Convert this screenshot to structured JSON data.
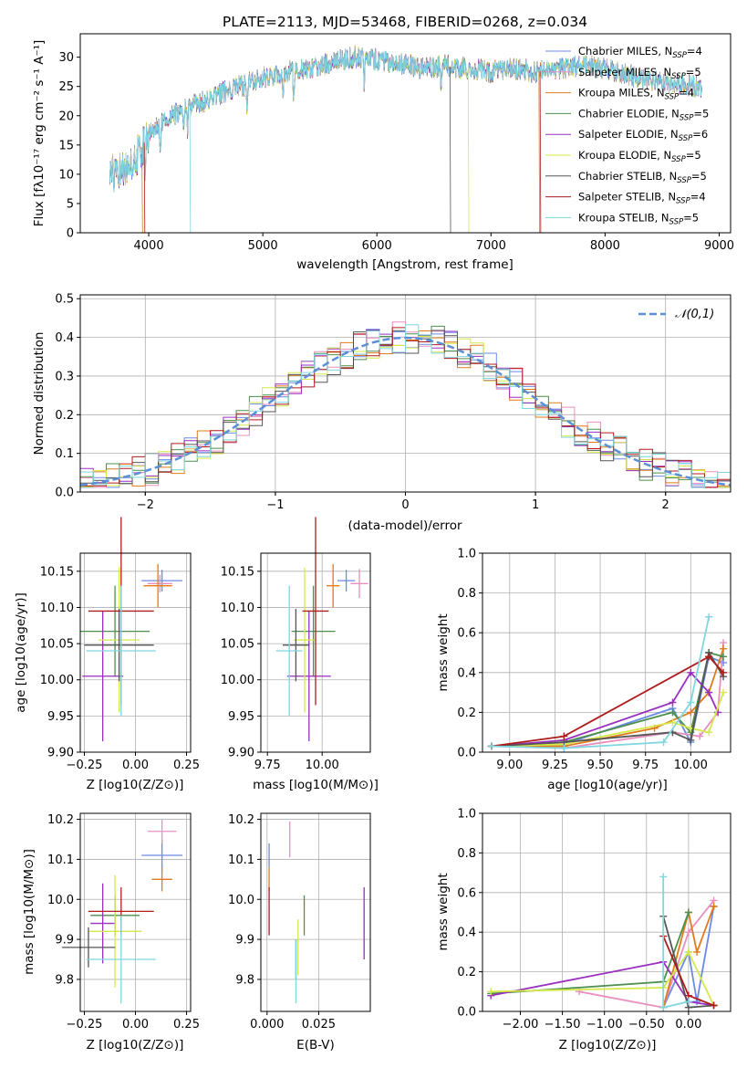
{
  "colors": {
    "Chabrier MILES": "#6b8ae6",
    "Salpeter MILES": "#e88fbf",
    "Kroupa MILES": "#e07b1a",
    "Chabrier ELODIE": "#4d8f4d",
    "Salpeter ELODIE": "#9a2fc0",
    "Kroupa ELODIE": "#d4e84a",
    "Chabrier STELIB": "#555555",
    "Salpeter STELIB": "#b01c1c",
    "Kroupa STELIB": "#7fd6e0"
  },
  "chart_data": [
    {
      "type": "line",
      "title": "PLATE=2113, MJD=53468, FIBERID=0268, z=0.034",
      "xlabel": "wavelength [Angstrom, rest frame]",
      "ylabel": "Flux [fλ10⁻¹⁷ erg cm⁻² s⁻¹ A⁻¹]",
      "xlim": [
        3400,
        9100
      ],
      "ylim": [
        0,
        34
      ],
      "xticks": [
        4000,
        5000,
        6000,
        7000,
        8000,
        9000
      ],
      "yticks": [
        0,
        5,
        10,
        15,
        20,
        25,
        30
      ],
      "legend_position": "right",
      "series": [
        {
          "name": "Chabrier MILES, N_SSP=4"
        },
        {
          "name": "Salpeter MILES, N_SSP=5"
        },
        {
          "name": "Kroupa MILES, N_SSP=4"
        },
        {
          "name": "Chabrier ELODIE, N_SSP=5"
        },
        {
          "name": "Salpeter ELODIE, N_SSP=6"
        },
        {
          "name": "Kroupa ELODIE, N_SSP=5"
        },
        {
          "name": "Chabrier STELIB, N_SSP=5"
        },
        {
          "name": "Salpeter STELIB, N_SSP=4"
        },
        {
          "name": "Kroupa STELIB, N_SSP=5"
        }
      ],
      "continuum": {
        "x": [
          3650,
          3750,
          3850,
          3950,
          4000,
          4100,
          4200,
          4300,
          4400,
          4500,
          4600,
          4800,
          5000,
          5200,
          5400,
          5600,
          5800,
          6000,
          6200,
          6400,
          6600,
          6800,
          7000,
          7200,
          7400,
          7600,
          7800,
          8000,
          8200,
          8400,
          8600,
          8850
        ],
        "y": [
          10,
          10.5,
          11.5,
          15,
          17,
          18.5,
          20,
          21,
          22,
          22.5,
          23.5,
          25,
          26.5,
          27.5,
          28,
          29,
          30,
          29.5,
          29,
          28,
          28.5,
          28,
          27.5,
          28,
          27.5,
          28,
          28.5,
          28,
          27,
          26,
          25.5,
          25
        ]
      },
      "absorption_lines": [
        3934,
        3968,
        4102,
        4304,
        4340,
        4861,
        5175,
        5270,
        5890,
        6563
      ]
    },
    {
      "type": "bar",
      "xlabel": "(data-model)/error",
      "ylabel": "Normed distribution",
      "xlim": [
        -2.5,
        2.5
      ],
      "ylim": [
        0,
        0.51
      ],
      "xticks": [
        -2,
        -1,
        0,
        1,
        2
      ],
      "yticks": [
        0.0,
        0.1,
        0.2,
        0.3,
        0.4,
        0.5
      ],
      "legend_position": "upper right",
      "reference_curve": {
        "name": "N(0,1)",
        "label": "𝒩(0,1)",
        "color": "#5b8fd6",
        "style": "dashed"
      },
      "bin_width": 0.1,
      "bins_start": -2.5
    },
    {
      "type": "scatter",
      "xlabel": "Z [log10(Z/Z⊙)]",
      "ylabel": "age  [log10(age/yr)]",
      "xlim": [
        -0.27,
        0.27
      ],
      "ylim": [
        9.9,
        10.175
      ],
      "xticks": [
        -0.25,
        0.0,
        0.25
      ],
      "yticks": [
        9.9,
        9.95,
        10.0,
        10.05,
        10.1,
        10.15
      ],
      "points": [
        {
          "model": "Chabrier MILES",
          "x": 0.13,
          "xerr": 0.1,
          "y": 10.137,
          "yerr": 0.015
        },
        {
          "model": "Salpeter MILES",
          "x": 0.12,
          "xerr": 0.06,
          "y": 10.133,
          "yerr": 0.012
        },
        {
          "model": "Kroupa MILES",
          "x": 0.11,
          "xerr": 0.07,
          "y": 10.13,
          "yerr": 0.03
        },
        {
          "model": "Chabrier ELODIE",
          "x": -0.1,
          "xerr": 0.17,
          "y": 10.067,
          "yerr": 0.063
        },
        {
          "model": "Salpeter ELODIE",
          "x": -0.16,
          "xerr": 0.1,
          "y": 10.005,
          "yerr": 0.09
        },
        {
          "model": "Kroupa ELODIE",
          "x": -0.08,
          "xerr": 0.1,
          "y": 10.055,
          "yerr": 0.1
        },
        {
          "model": "Chabrier STELIB",
          "x": -0.08,
          "xerr": 0.17,
          "y": 10.048,
          "yerr": 0.05
        },
        {
          "model": "Salpeter STELIB",
          "x": -0.07,
          "xerr": 0.16,
          "y": 10.095,
          "yerr": 0.13
        },
        {
          "model": "Kroupa STELIB",
          "x": -0.07,
          "xerr": 0.17,
          "y": 10.04,
          "yerr": 0.09
        }
      ]
    },
    {
      "type": "scatter",
      "xlabel": "mass [log10(M/M⊙)]",
      "ylabel": "",
      "xlim": [
        9.72,
        10.22
      ],
      "ylim": [
        9.9,
        10.175
      ],
      "xticks": [
        9.75,
        10.0
      ],
      "yticks": [
        9.9,
        9.95,
        10.0,
        10.05,
        10.1,
        10.15
      ],
      "points": [
        {
          "model": "Chabrier MILES",
          "x": 10.11,
          "xerr": 0.04,
          "y": 10.137,
          "yerr": 0.015
        },
        {
          "model": "Salpeter MILES",
          "x": 10.17,
          "xerr": 0.04,
          "y": 10.133,
          "yerr": 0.02
        },
        {
          "model": "Kroupa MILES",
          "x": 10.05,
          "xerr": 0.03,
          "y": 10.13,
          "yerr": 0.03
        },
        {
          "model": "Chabrier ELODIE",
          "x": 9.96,
          "xerr": 0.1,
          "y": 10.067,
          "yerr": 0.063
        },
        {
          "model": "Salpeter ELODIE",
          "x": 9.94,
          "xerr": 0.1,
          "y": 10.005,
          "yerr": 0.09
        },
        {
          "model": "Kroupa ELODIE",
          "x": 9.92,
          "xerr": 0.05,
          "y": 10.055,
          "yerr": 0.1
        },
        {
          "model": "Chabrier STELIB",
          "x": 9.88,
          "xerr": 0.06,
          "y": 10.048,
          "yerr": 0.05
        },
        {
          "model": "Salpeter STELIB",
          "x": 9.97,
          "xerr": 0.06,
          "y": 10.095,
          "yerr": 0.13
        },
        {
          "model": "Kroupa STELIB",
          "x": 9.85,
          "xerr": 0.06,
          "y": 10.04,
          "yerr": 0.09
        }
      ]
    },
    {
      "type": "line",
      "xlabel": "age  [log10(age/yr)]",
      "ylabel": "mass weight",
      "xlim": [
        8.85,
        10.22
      ],
      "ylim": [
        0,
        1
      ],
      "xticks": [
        9.0,
        9.25,
        9.5,
        9.75,
        10.0
      ],
      "yticks": [
        0.0,
        0.2,
        0.4,
        0.6,
        0.8,
        1.0
      ],
      "series": [
        {
          "name": "Chabrier MILES",
          "x": [
            8.9,
            9.3,
            9.9,
            10.0,
            10.1,
            10.18
          ],
          "y": [
            0.03,
            0.04,
            0.22,
            0.05,
            0.48,
            0.45
          ]
        },
        {
          "name": "Salpeter MILES",
          "x": [
            8.9,
            9.3,
            9.9,
            10.05,
            10.15,
            10.18
          ],
          "y": [
            0.03,
            0.02,
            0.1,
            0.08,
            0.2,
            0.55
          ]
        },
        {
          "name": "Kroupa MILES",
          "x": [
            8.9,
            9.3,
            9.8,
            10.0,
            10.1,
            10.18
          ],
          "y": [
            0.03,
            0.03,
            0.12,
            0.2,
            0.3,
            0.52
          ]
        },
        {
          "name": "Chabrier ELODIE",
          "x": [
            8.9,
            9.3,
            9.9,
            10.0,
            10.1,
            10.18
          ],
          "y": [
            0.03,
            0.05,
            0.2,
            0.1,
            0.5,
            0.48
          ]
        },
        {
          "name": "Salpeter ELODIE",
          "x": [
            8.9,
            9.3,
            9.9,
            10.0,
            10.1,
            10.15
          ],
          "y": [
            0.03,
            0.06,
            0.25,
            0.4,
            0.3,
            0.2
          ]
        },
        {
          "name": "Kroupa ELODIE",
          "x": [
            8.9,
            9.3,
            9.9,
            10.0,
            10.1,
            10.18
          ],
          "y": [
            0.03,
            0.04,
            0.15,
            0.12,
            0.1,
            0.3
          ]
        },
        {
          "name": "Chabrier STELIB",
          "x": [
            8.9,
            9.3,
            9.9,
            10.0,
            10.1,
            10.18
          ],
          "y": [
            0.03,
            0.05,
            0.1,
            0.06,
            0.5,
            0.38
          ]
        },
        {
          "name": "Salpeter STELIB",
          "x": [
            8.9,
            9.3,
            10.1,
            10.18
          ],
          "y": [
            0.03,
            0.08,
            0.48,
            0.4
          ]
        },
        {
          "name": "Kroupa STELIB",
          "x": [
            8.9,
            9.3,
            9.85,
            10.0,
            10.1
          ],
          "y": [
            0.03,
            0.02,
            0.05,
            0.25,
            0.68
          ]
        }
      ]
    },
    {
      "type": "scatter",
      "xlabel": "Z [log10(Z/Z⊙)]",
      "ylabel": "mass [log10(M/M⊙)]",
      "xlim": [
        -0.27,
        0.27
      ],
      "ylim": [
        9.72,
        10.215
      ],
      "xticks": [
        -0.25,
        0.0,
        0.25
      ],
      "yticks": [
        9.8,
        9.9,
        10.0,
        10.1,
        10.2
      ],
      "points": [
        {
          "model": "Chabrier MILES",
          "x": 0.13,
          "xerr": 0.1,
          "y": 10.11,
          "yerr": 0.04
        },
        {
          "model": "Salpeter MILES",
          "x": 0.13,
          "xerr": 0.07,
          "y": 10.17,
          "yerr": 0.03
        },
        {
          "model": "Kroupa MILES",
          "x": 0.13,
          "xerr": 0.05,
          "y": 10.05,
          "yerr": 0.03
        },
        {
          "model": "Chabrier ELODIE",
          "x": -0.1,
          "xerr": 0.12,
          "y": 9.96,
          "yerr": 0.05
        },
        {
          "model": "Salpeter ELODIE",
          "x": -0.16,
          "xerr": 0.06,
          "y": 9.94,
          "yerr": 0.1
        },
        {
          "model": "Kroupa ELODIE",
          "x": -0.1,
          "xerr": 0.13,
          "y": 9.92,
          "yerr": 0.14
        },
        {
          "model": "Chabrier STELIB",
          "x": -0.23,
          "xerr": 0.13,
          "y": 9.88,
          "yerr": 0.05
        },
        {
          "model": "Salpeter STELIB",
          "x": -0.07,
          "xerr": 0.16,
          "y": 9.97,
          "yerr": 0.06
        },
        {
          "model": "Kroupa STELIB",
          "x": -0.07,
          "xerr": 0.17,
          "y": 9.85,
          "yerr": 0.11
        }
      ]
    },
    {
      "type": "scatter",
      "xlabel": "E(B-V)",
      "ylabel": "",
      "xlim": [
        -0.003,
        0.05
      ],
      "ylim": [
        9.72,
        10.215
      ],
      "xticks": [
        0.0,
        0.025
      ],
      "yticks": [
        9.8,
        9.9,
        10.0,
        10.1,
        10.2
      ],
      "points": [
        {
          "model": "Chabrier MILES",
          "x": 0.001,
          "xerr": 0.0,
          "y": 10.11,
          "yerr": 0.03
        },
        {
          "model": "Salpeter MILES",
          "x": 0.011,
          "xerr": 0.0,
          "y": 10.15,
          "yerr": 0.045
        },
        {
          "model": "Kroupa MILES",
          "x": 0.001,
          "xerr": 0.0,
          "y": 10.05,
          "yerr": 0.03
        },
        {
          "model": "Chabrier ELODIE",
          "x": 0.018,
          "xerr": 0.0,
          "y": 9.96,
          "yerr": 0.05
        },
        {
          "model": "Salpeter ELODIE",
          "x": 0.047,
          "xerr": 0.0,
          "y": 9.94,
          "yerr": 0.09
        },
        {
          "model": "Kroupa ELODIE",
          "x": 0.015,
          "xerr": 0.0,
          "y": 9.88,
          "yerr": 0.07
        },
        {
          "model": "Chabrier STELIB",
          "x": 0.014,
          "xerr": 0.0,
          "y": 9.85,
          "yerr": 0.05
        },
        {
          "model": "Salpeter STELIB",
          "x": 0.001,
          "xerr": 0.0,
          "y": 9.97,
          "yerr": 0.06
        },
        {
          "model": "Kroupa STELIB",
          "x": 0.014,
          "xerr": 0.0,
          "y": 9.82,
          "yerr": 0.08
        }
      ]
    },
    {
      "type": "line",
      "xlabel": "Z [log10(Z/Z⊙)]",
      "ylabel": "mass weight",
      "xlim": [
        -2.45,
        0.5
      ],
      "ylim": [
        0,
        1
      ],
      "xticks": [
        -2.0,
        -1.5,
        -1.0,
        -0.5,
        0.0
      ],
      "yticks": [
        0.0,
        0.2,
        0.4,
        0.6,
        0.8,
        1.0
      ],
      "series": [
        {
          "name": "Chabrier MILES",
          "x": [
            -0.3,
            0.0,
            0.1,
            0.3
          ],
          "y": [
            0.02,
            0.3,
            0.05,
            0.53
          ]
        },
        {
          "name": "Salpeter MILES",
          "x": [
            -1.3,
            -0.3,
            0.0,
            0.3
          ],
          "y": [
            0.1,
            0.02,
            0.4,
            0.56
          ]
        },
        {
          "name": "Kroupa MILES",
          "x": [
            -0.3,
            0.0,
            0.1,
            0.3
          ],
          "y": [
            0.02,
            0.5,
            0.3,
            0.53
          ]
        },
        {
          "name": "Chabrier ELODIE",
          "x": [
            -2.35,
            -0.3,
            0.0
          ],
          "y": [
            0.09,
            0.15,
            0.5
          ]
        },
        {
          "name": "Salpeter ELODIE",
          "x": [
            -2.35,
            -0.3,
            0.0,
            0.3
          ],
          "y": [
            0.08,
            0.25,
            0.05,
            0.03
          ]
        },
        {
          "name": "Kroupa ELODIE",
          "x": [
            -2.35,
            -0.3,
            0.0,
            0.3
          ],
          "y": [
            0.1,
            0.12,
            0.3,
            0.03
          ]
        },
        {
          "name": "Chabrier STELIB",
          "x": [
            -0.3,
            0.0,
            0.3
          ],
          "y": [
            0.48,
            0.02,
            0.03
          ]
        },
        {
          "name": "Salpeter STELIB",
          "x": [
            -0.3,
            0.0,
            0.3
          ],
          "y": [
            0.38,
            0.08,
            0.03
          ]
        },
        {
          "name": "Kroupa STELIB",
          "x": [
            -0.3,
            -0.3,
            0.0
          ],
          "y": [
            0.68,
            0.02,
            0.05
          ]
        }
      ]
    }
  ]
}
